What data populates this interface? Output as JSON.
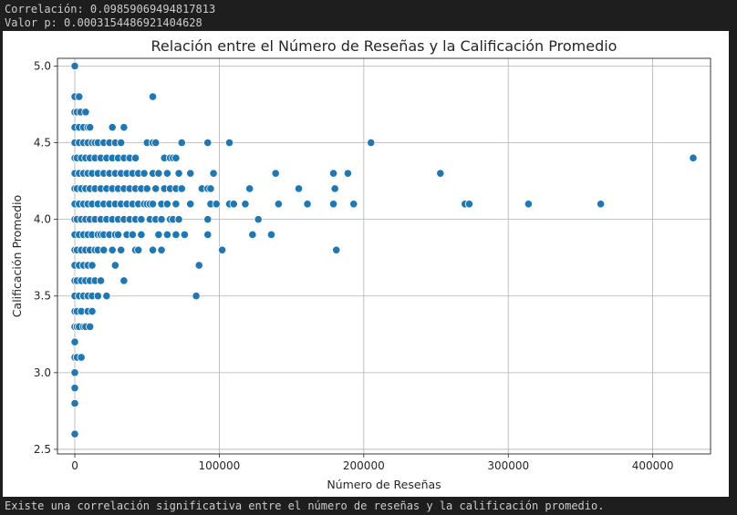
{
  "output": {
    "correlation_line": "Correlación: 0.09859069494817813",
    "pvalue_line": "Valor p: 0.0003154486921404628",
    "conclusion_line": "Existe una correlación significativa entre el número de reseñas y la calificación promedio."
  },
  "chart_data": {
    "type": "scatter",
    "title": "Relación entre el Número de Reseñas y la Calificación Promedio",
    "xlabel": "Número de Reseñas",
    "ylabel": "Calificación Promedio",
    "xlim": [
      -12000,
      440000
    ],
    "ylim": [
      2.47,
      5.05
    ],
    "xticks": [
      0,
      100000,
      200000,
      300000,
      400000
    ],
    "xtick_labels": [
      "0",
      "100000",
      "200000",
      "300000",
      "400000"
    ],
    "yticks": [
      2.5,
      3.0,
      3.5,
      4.0,
      4.5,
      5.0
    ],
    "ytick_labels": [
      "2.5",
      "3.0",
      "3.5",
      "4.0",
      "4.5",
      "5.0"
    ],
    "grid": true,
    "point_color": "#1f77b4",
    "points": [
      [
        0,
        5.0
      ],
      [
        0,
        4.8
      ],
      [
        0,
        4.7
      ],
      [
        0,
        4.6
      ],
      [
        0,
        4.5
      ],
      [
        0,
        4.4
      ],
      [
        0,
        4.3
      ],
      [
        0,
        4.2
      ],
      [
        0,
        4.1
      ],
      [
        0,
        4.0
      ],
      [
        0,
        3.9
      ],
      [
        0,
        3.8
      ],
      [
        0,
        3.7
      ],
      [
        0,
        3.6
      ],
      [
        0,
        3.5
      ],
      [
        0,
        3.4
      ],
      [
        0,
        3.3
      ],
      [
        0,
        3.2
      ],
      [
        0,
        3.1
      ],
      [
        0,
        3.0
      ],
      [
        0,
        2.9
      ],
      [
        0,
        2.8
      ],
      [
        0,
        2.6
      ],
      [
        1500,
        4.7
      ],
      [
        1500,
        4.4
      ],
      [
        1500,
        4.2
      ],
      [
        1500,
        4.0
      ],
      [
        1500,
        3.8
      ],
      [
        1500,
        3.6
      ],
      [
        1500,
        3.4
      ],
      [
        1500,
        3.3
      ],
      [
        1500,
        3.1
      ],
      [
        3000,
        4.8
      ],
      [
        3000,
        4.6
      ],
      [
        3000,
        4.5
      ],
      [
        3000,
        4.3
      ],
      [
        3000,
        4.1
      ],
      [
        3000,
        3.9
      ],
      [
        3000,
        3.7
      ],
      [
        3000,
        3.5
      ],
      [
        3000,
        3.3
      ],
      [
        4000,
        4.7
      ],
      [
        4500,
        4.4
      ],
      [
        4500,
        4.2
      ],
      [
        4500,
        4.0
      ],
      [
        4500,
        3.8
      ],
      [
        4500,
        3.6
      ],
      [
        4500,
        3.4
      ],
      [
        4500,
        3.1
      ],
      [
        6000,
        4.6
      ],
      [
        6000,
        4.5
      ],
      [
        6000,
        4.3
      ],
      [
        6000,
        4.1
      ],
      [
        6000,
        3.9
      ],
      [
        6000,
        3.7
      ],
      [
        6000,
        3.5
      ],
      [
        6000,
        3.3
      ],
      [
        7500,
        4.7
      ],
      [
        7500,
        4.4
      ],
      [
        7500,
        4.2
      ],
      [
        7500,
        4.0
      ],
      [
        7500,
        3.8
      ],
      [
        7500,
        3.6
      ],
      [
        7500,
        3.3
      ],
      [
        9000,
        4.6
      ],
      [
        9000,
        4.5
      ],
      [
        9000,
        4.3
      ],
      [
        9000,
        4.1
      ],
      [
        9000,
        3.9
      ],
      [
        9000,
        3.7
      ],
      [
        9000,
        3.5
      ],
      [
        9000,
        3.4
      ],
      [
        10500,
        4.6
      ],
      [
        10500,
        4.4
      ],
      [
        10500,
        4.2
      ],
      [
        10500,
        4.0
      ],
      [
        10500,
        3.8
      ],
      [
        10500,
        3.6
      ],
      [
        10500,
        3.3
      ],
      [
        12000,
        4.5
      ],
      [
        12000,
        4.3
      ],
      [
        12000,
        4.1
      ],
      [
        12000,
        3.9
      ],
      [
        12000,
        3.7
      ],
      [
        12000,
        3.5
      ],
      [
        12000,
        3.4
      ],
      [
        14000,
        4.5
      ],
      [
        14000,
        4.4
      ],
      [
        14000,
        4.2
      ],
      [
        14000,
        4.0
      ],
      [
        14000,
        3.8
      ],
      [
        14000,
        3.6
      ],
      [
        16000,
        4.5
      ],
      [
        16000,
        4.3
      ],
      [
        16000,
        4.1
      ],
      [
        16000,
        3.9
      ],
      [
        16000,
        3.8
      ],
      [
        16000,
        3.5
      ],
      [
        18000,
        4.4
      ],
      [
        18000,
        4.2
      ],
      [
        18000,
        4.0
      ],
      [
        18000,
        3.9
      ],
      [
        18000,
        3.6
      ],
      [
        20000,
        4.5
      ],
      [
        20000,
        4.3
      ],
      [
        20000,
        4.1
      ],
      [
        20000,
        3.9
      ],
      [
        20000,
        3.8
      ],
      [
        22000,
        4.4
      ],
      [
        22000,
        4.2
      ],
      [
        22000,
        4.0
      ],
      [
        22000,
        3.5
      ],
      [
        24000,
        4.5
      ],
      [
        24000,
        4.3
      ],
      [
        24000,
        4.1
      ],
      [
        24000,
        3.9
      ],
      [
        26000,
        4.6
      ],
      [
        26000,
        4.4
      ],
      [
        26000,
        4.2
      ],
      [
        26000,
        4.0
      ],
      [
        26000,
        3.8
      ],
      [
        28000,
        4.5
      ],
      [
        28000,
        4.3
      ],
      [
        28000,
        4.1
      ],
      [
        28000,
        3.9
      ],
      [
        28000,
        3.7
      ],
      [
        30000,
        4.4
      ],
      [
        30000,
        4.2
      ],
      [
        30000,
        4.0
      ],
      [
        30000,
        3.9
      ],
      [
        32000,
        4.5
      ],
      [
        32000,
        4.3
      ],
      [
        32000,
        4.1
      ],
      [
        32000,
        3.8
      ],
      [
        34000,
        4.6
      ],
      [
        34000,
        4.4
      ],
      [
        34000,
        4.2
      ],
      [
        34000,
        4.0
      ],
      [
        34000,
        3.6
      ],
      [
        36000,
        4.3
      ],
      [
        36000,
        4.1
      ],
      [
        36000,
        3.9
      ],
      [
        38000,
        4.4
      ],
      [
        38000,
        4.2
      ],
      [
        38000,
        4.0
      ],
      [
        40000,
        4.3
      ],
      [
        40000,
        4.1
      ],
      [
        40000,
        3.9
      ],
      [
        42000,
        4.4
      ],
      [
        42000,
        4.2
      ],
      [
        42000,
        4.0
      ],
      [
        42000,
        3.8
      ],
      [
        44000,
        4.3
      ],
      [
        44000,
        4.1
      ],
      [
        44000,
        3.8
      ],
      [
        46000,
        4.2
      ],
      [
        46000,
        4.0
      ],
      [
        46000,
        3.9
      ],
      [
        48000,
        4.3
      ],
      [
        48000,
        4.1
      ],
      [
        50000,
        4.5
      ],
      [
        50000,
        4.2
      ],
      [
        50000,
        4.1
      ],
      [
        52000,
        4.1
      ],
      [
        52000,
        4.0
      ],
      [
        54000,
        4.8
      ],
      [
        54000,
        4.5
      ],
      [
        54000,
        4.3
      ],
      [
        54000,
        4.1
      ],
      [
        54000,
        3.8
      ],
      [
        56000,
        4.5
      ],
      [
        56000,
        4.2
      ],
      [
        56000,
        4.0
      ],
      [
        58000,
        4.3
      ],
      [
        58000,
        3.9
      ],
      [
        60000,
        4.1
      ],
      [
        60000,
        4.0
      ],
      [
        60000,
        3.8
      ],
      [
        62000,
        4.4
      ],
      [
        62000,
        4.2
      ],
      [
        64000,
        4.3
      ],
      [
        64000,
        4.1
      ],
      [
        64000,
        3.9
      ],
      [
        66000,
        4.4
      ],
      [
        66000,
        4.2
      ],
      [
        66000,
        4.0
      ],
      [
        68000,
        4.4
      ],
      [
        68000,
        4.0
      ],
      [
        70000,
        4.4
      ],
      [
        70000,
        4.2
      ],
      [
        70000,
        4.1
      ],
      [
        70000,
        3.9
      ],
      [
        72000,
        4.3
      ],
      [
        72000,
        4.0
      ],
      [
        74000,
        4.5
      ],
      [
        74000,
        4.2
      ],
      [
        76000,
        3.9
      ],
      [
        80000,
        4.3
      ],
      [
        80000,
        4.1
      ],
      [
        84000,
        3.5
      ],
      [
        86000,
        3.7
      ],
      [
        88000,
        4.2
      ],
      [
        92000,
        4.5
      ],
      [
        92000,
        4.2
      ],
      [
        92000,
        4.0
      ],
      [
        92000,
        3.9
      ],
      [
        94000,
        4.2
      ],
      [
        94000,
        4.1
      ],
      [
        96000,
        4.3
      ],
      [
        98000,
        4.1
      ],
      [
        102000,
        3.8
      ],
      [
        107000,
        4.5
      ],
      [
        107000,
        4.1
      ],
      [
        110000,
        4.1
      ],
      [
        118000,
        4.1
      ],
      [
        121000,
        4.2
      ],
      [
        123000,
        3.9
      ],
      [
        127000,
        4.0
      ],
      [
        136000,
        3.9
      ],
      [
        139000,
        4.3
      ],
      [
        141000,
        4.1
      ],
      [
        155000,
        4.2
      ],
      [
        161000,
        4.1
      ],
      [
        179000,
        4.3
      ],
      [
        179000,
        4.1
      ],
      [
        180000,
        4.2
      ],
      [
        181000,
        3.8
      ],
      [
        189000,
        4.3
      ],
      [
        193000,
        4.1
      ],
      [
        205000,
        4.5
      ],
      [
        253000,
        4.3
      ],
      [
        270000,
        4.1
      ],
      [
        273000,
        4.1
      ],
      [
        314000,
        4.1
      ],
      [
        364000,
        4.1
      ],
      [
        428000,
        4.4
      ]
    ]
  }
}
